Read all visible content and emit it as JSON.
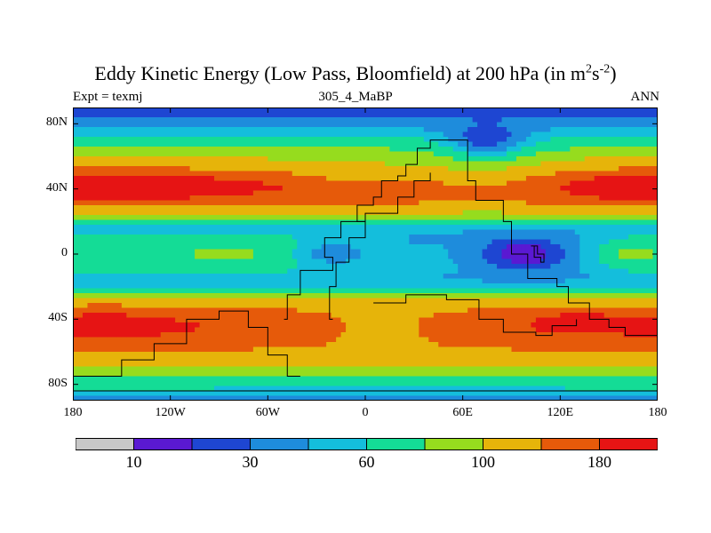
{
  "figure": {
    "title_main": "Eddy Kinetic Energy (Low Pass, Bloomfield) at 200 hPa (in m",
    "title_sup1": "2",
    "title_mid": "s",
    "title_sup2": "-2",
    "title_end": ")",
    "subtitle_left": "Expt = texmj",
    "subtitle_center": "305_4_MaBP",
    "subtitle_right": "ANN"
  },
  "chart_data": {
    "type": "heatmap",
    "projection": "cylindrical-equidistant",
    "variable": "Eddy Kinetic Energy (Low Pass, Bloomfield) at 200 hPa",
    "units": "m2 s-2",
    "x_range": [
      -180,
      180
    ],
    "y_range": [
      -90,
      90
    ],
    "x_ticks": [
      {
        "value": -180,
        "label": "180"
      },
      {
        "value": -120,
        "label": "120W"
      },
      {
        "value": -60,
        "label": "60W"
      },
      {
        "value": 0,
        "label": "0"
      },
      {
        "value": 60,
        "label": "60E"
      },
      {
        "value": 120,
        "label": "120E"
      },
      {
        "value": 180,
        "label": "180"
      }
    ],
    "y_ticks": [
      {
        "value": 80,
        "label": "80N"
      },
      {
        "value": 40,
        "label": "40N"
      },
      {
        "value": 0,
        "label": "0"
      },
      {
        "value": -40,
        "label": "40S"
      },
      {
        "value": -80,
        "label": "80S"
      }
    ],
    "levels": [
      10,
      20,
      30,
      45,
      60,
      80,
      100,
      140,
      180
    ],
    "level_labels": [
      {
        "value": 10,
        "label": "10"
      },
      {
        "value": 30,
        "label": "30"
      },
      {
        "value": 60,
        "label": "60"
      },
      {
        "value": 100,
        "label": "100"
      },
      {
        "value": 180,
        "label": "180"
      }
    ],
    "colors": [
      "#c8c8c8",
      "#5a19d2",
      "#1e46d2",
      "#1e8cdc",
      "#14bedc",
      "#14dc96",
      "#96dc1e",
      "#e6b40a",
      "#e65a0a",
      "#e61414"
    ],
    "zonal_profile": {
      "lat": [
        -90,
        -85,
        -80,
        -75,
        -70,
        -65,
        -60,
        -55,
        -50,
        -45,
        -40,
        -35,
        -30,
        -25,
        -20,
        -15,
        -10,
        -5,
        0,
        5,
        10,
        15,
        20,
        25,
        30,
        35,
        40,
        45,
        50,
        55,
        60,
        65,
        70,
        75,
        80,
        85,
        90
      ],
      "value": [
        40,
        55,
        65,
        80,
        95,
        115,
        135,
        155,
        170,
        178,
        170,
        150,
        120,
        85,
        60,
        50,
        65,
        78,
        85,
        78,
        65,
        55,
        70,
        100,
        140,
        170,
        190,
        180,
        150,
        115,
        95,
        80,
        65,
        50,
        40,
        30,
        20
      ]
    },
    "anomalies": [
      {
        "name": "indian-ocean-minimum",
        "lon": 98,
        "lat": 0,
        "rlon": 48,
        "rlat": 12,
        "amp": -70
      },
      {
        "name": "atlantic-minimum",
        "lon": -22,
        "lat": 0,
        "rlon": 28,
        "rlat": 8,
        "amp": -45
      },
      {
        "name": "africa-equator-low",
        "lon": 25,
        "lat": 2,
        "rlon": 30,
        "rlat": 12,
        "amp": -25
      },
      {
        "name": "pacific-jet-maximum",
        "lon": -150,
        "lat": 42,
        "rlon": 50,
        "rlat": 10,
        "amp": 45
      },
      {
        "name": "nw-pacific-jet",
        "lon": 160,
        "lat": 40,
        "rlon": 30,
        "rlat": 10,
        "amp": 20
      },
      {
        "name": "asia-jet-low",
        "lon": 70,
        "lat": 45,
        "rlon": 45,
        "rlat": 12,
        "amp": -50
      },
      {
        "name": "north-atlantic-jet-low",
        "lon": -10,
        "lat": 45,
        "rlon": 40,
        "rlat": 10,
        "amp": -35
      },
      {
        "name": "arctic-dip",
        "lon": 75,
        "lat": 68,
        "rlon": 25,
        "rlat": 10,
        "amp": -45
      },
      {
        "name": "south-pacific-storm-track",
        "lon": -160,
        "lat": -42,
        "rlon": 45,
        "rlat": 12,
        "amp": 25
      },
      {
        "name": "south-indian-storm-track",
        "lon": 130,
        "lat": -40,
        "rlon": 25,
        "rlat": 8,
        "amp": 25
      },
      {
        "name": "south-atlantic-weak",
        "lon": 10,
        "lat": -45,
        "rlon": 50,
        "rlat": 12,
        "amp": -45
      },
      {
        "name": "pacific-tropical-high",
        "lon": -150,
        "lat": 0,
        "rlon": 40,
        "rlat": 10,
        "amp": -10
      },
      {
        "name": "tropical-pacific-east",
        "lon": 160,
        "lat": 0,
        "rlon": 20,
        "rlat": 8,
        "amp": 15
      }
    ],
    "outlines": [
      {
        "name": "continent-outline-north",
        "points": [
          [
            -20,
            -40
          ],
          [
            -22,
            -20
          ],
          [
            -18,
            -5
          ],
          [
            -10,
            10
          ],
          [
            0,
            20
          ],
          [
            -5,
            30
          ],
          [
            5,
            35
          ],
          [
            10,
            45
          ],
          [
            20,
            48
          ],
          [
            25,
            55
          ],
          [
            32,
            65
          ],
          [
            40,
            70
          ],
          [
            58,
            70
          ],
          [
            63,
            60
          ],
          [
            63,
            45
          ],
          [
            68,
            33
          ],
          [
            78,
            33
          ],
          [
            85,
            20
          ],
          [
            90,
            0
          ],
          [
            100,
            -15
          ],
          [
            118,
            -20
          ],
          [
            125,
            -30
          ],
          [
            135,
            -30
          ],
          [
            138,
            -40
          ],
          [
            145,
            -40
          ],
          [
            150,
            -45
          ],
          [
            160,
            -50
          ],
          [
            180,
            -60
          ]
        ]
      },
      {
        "name": "continent-outline-south",
        "points": [
          [
            -40,
            -75
          ],
          [
            -48,
            -62
          ],
          [
            -60,
            -45
          ],
          [
            -72,
            -35
          ],
          [
            -90,
            -40
          ],
          [
            -110,
            -55
          ],
          [
            -130,
            -65
          ],
          [
            -150,
            -75
          ],
          [
            -180,
            -80
          ]
        ]
      },
      {
        "name": "inner-outline",
        "points": [
          [
            -50,
            -40
          ],
          [
            -48,
            -25
          ],
          [
            -40,
            -10
          ],
          [
            -20,
            -2
          ],
          [
            -25,
            10
          ],
          [
            -15,
            20
          ],
          [
            0,
            25
          ],
          [
            20,
            35
          ],
          [
            30,
            45
          ],
          [
            40,
            50
          ]
        ]
      },
      {
        "name": "eastern-outline",
        "points": [
          [
            5,
            -30
          ],
          [
            25,
            -25
          ],
          [
            50,
            -28
          ],
          [
            70,
            -40
          ],
          [
            85,
            -48
          ],
          [
            105,
            -50
          ],
          [
            115,
            -44
          ],
          [
            130,
            -40
          ]
        ]
      },
      {
        "name": "island-outline",
        "points": [
          [
            102,
            5
          ],
          [
            104,
            -2
          ],
          [
            108,
            -5
          ],
          [
            110,
            0
          ],
          [
            106,
            5
          ],
          [
            102,
            5
          ]
        ]
      },
      {
        "name": "antarctic-coast",
        "points": [
          [
            -180,
            -84
          ],
          [
            -60,
            -84
          ],
          [
            0,
            -84
          ],
          [
            60,
            -84
          ],
          [
            180,
            -84
          ]
        ]
      }
    ]
  }
}
